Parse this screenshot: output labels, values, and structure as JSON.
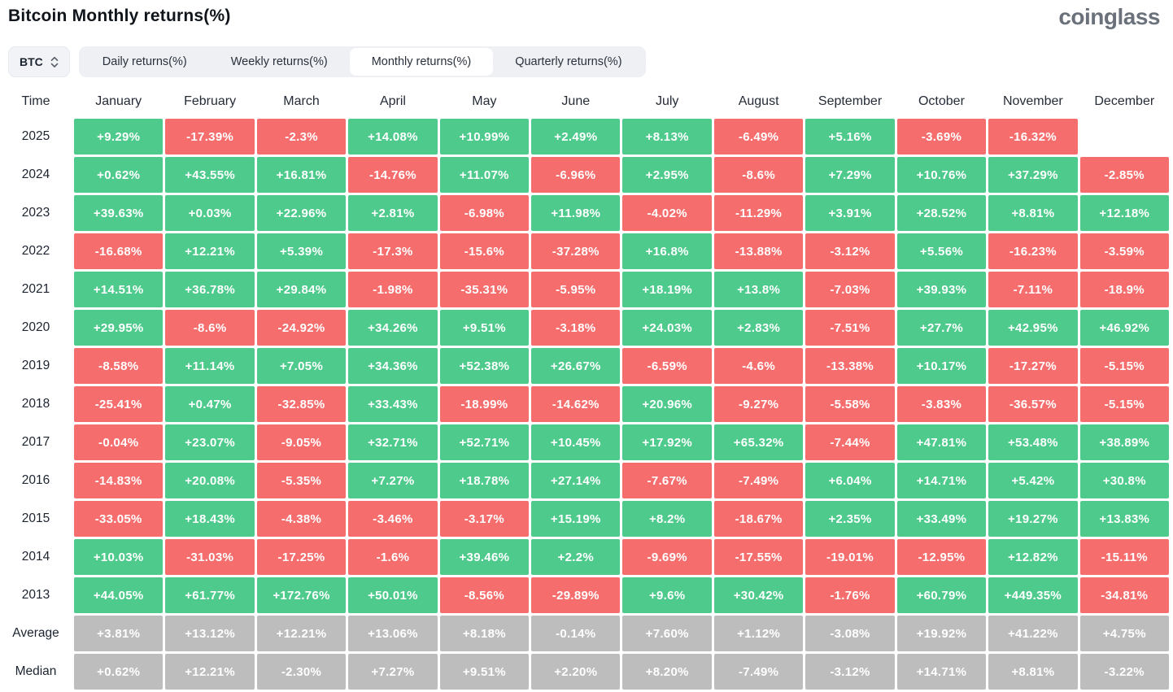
{
  "header": {
    "title": "Bitcoin Monthly returns(%)",
    "logo_text": "coinglass"
  },
  "controls": {
    "symbol_selector": {
      "value": "BTC",
      "icon": "chevron-up-down-icon"
    },
    "tabs": [
      {
        "id": "daily",
        "label": "Daily returns(%)",
        "active": false
      },
      {
        "id": "weekly",
        "label": "Weekly returns(%)",
        "active": false
      },
      {
        "id": "monthly",
        "label": "Monthly returns(%)",
        "active": true
      },
      {
        "id": "quarterly",
        "label": "Quarterly returns(%)",
        "active": false
      }
    ]
  },
  "colors": {
    "positive_cell": "#4ecb8c",
    "negative_cell": "#f66d6d",
    "summary_cell": "#bdbdbd",
    "cell_text": "#ffffff",
    "tab_bar_bg": "#eef0f4",
    "active_tab_bg": "#ffffff",
    "logo_gray": "#6a717b"
  },
  "chart_data": {
    "type": "heatmap",
    "title": "Bitcoin Monthly returns(%)",
    "row_header": "Time",
    "legend_position": "none",
    "grid": false,
    "color_rule": "positive=green, negative=red, summary rows=gray, missing=blank",
    "columns": [
      "January",
      "February",
      "March",
      "April",
      "May",
      "June",
      "July",
      "August",
      "September",
      "October",
      "November",
      "December"
    ],
    "rows": [
      {
        "label": "2025",
        "kind": "year",
        "values": [
          "+9.29%",
          "-17.39%",
          "-2.3%",
          "+14.08%",
          "+10.99%",
          "+2.49%",
          "+8.13%",
          "-6.49%",
          "+5.16%",
          "-3.69%",
          "-16.32%",
          ""
        ]
      },
      {
        "label": "2024",
        "kind": "year",
        "values": [
          "+0.62%",
          "+43.55%",
          "+16.81%",
          "-14.76%",
          "+11.07%",
          "-6.96%",
          "+2.95%",
          "-8.6%",
          "+7.29%",
          "+10.76%",
          "+37.29%",
          "-2.85%"
        ]
      },
      {
        "label": "2023",
        "kind": "year",
        "values": [
          "+39.63%",
          "+0.03%",
          "+22.96%",
          "+2.81%",
          "-6.98%",
          "+11.98%",
          "-4.02%",
          "-11.29%",
          "+3.91%",
          "+28.52%",
          "+8.81%",
          "+12.18%"
        ]
      },
      {
        "label": "2022",
        "kind": "year",
        "values": [
          "-16.68%",
          "+12.21%",
          "+5.39%",
          "-17.3%",
          "-15.6%",
          "-37.28%",
          "+16.8%",
          "-13.88%",
          "-3.12%",
          "+5.56%",
          "-16.23%",
          "-3.59%"
        ]
      },
      {
        "label": "2021",
        "kind": "year",
        "values": [
          "+14.51%",
          "+36.78%",
          "+29.84%",
          "-1.98%",
          "-35.31%",
          "-5.95%",
          "+18.19%",
          "+13.8%",
          "-7.03%",
          "+39.93%",
          "-7.11%",
          "-18.9%"
        ]
      },
      {
        "label": "2020",
        "kind": "year",
        "values": [
          "+29.95%",
          "-8.6%",
          "-24.92%",
          "+34.26%",
          "+9.51%",
          "-3.18%",
          "+24.03%",
          "+2.83%",
          "-7.51%",
          "+27.7%",
          "+42.95%",
          "+46.92%"
        ]
      },
      {
        "label": "2019",
        "kind": "year",
        "values": [
          "-8.58%",
          "+11.14%",
          "+7.05%",
          "+34.36%",
          "+52.38%",
          "+26.67%",
          "-6.59%",
          "-4.6%",
          "-13.38%",
          "+10.17%",
          "-17.27%",
          "-5.15%"
        ]
      },
      {
        "label": "2018",
        "kind": "year",
        "values": [
          "-25.41%",
          "+0.47%",
          "-32.85%",
          "+33.43%",
          "-18.99%",
          "-14.62%",
          "+20.96%",
          "-9.27%",
          "-5.58%",
          "-3.83%",
          "-36.57%",
          "-5.15%"
        ]
      },
      {
        "label": "2017",
        "kind": "year",
        "values": [
          "-0.04%",
          "+23.07%",
          "-9.05%",
          "+32.71%",
          "+52.71%",
          "+10.45%",
          "+17.92%",
          "+65.32%",
          "-7.44%",
          "+47.81%",
          "+53.48%",
          "+38.89%"
        ]
      },
      {
        "label": "2016",
        "kind": "year",
        "values": [
          "-14.83%",
          "+20.08%",
          "-5.35%",
          "+7.27%",
          "+18.78%",
          "+27.14%",
          "-7.67%",
          "-7.49%",
          "+6.04%",
          "+14.71%",
          "+5.42%",
          "+30.8%"
        ]
      },
      {
        "label": "2015",
        "kind": "year",
        "values": [
          "-33.05%",
          "+18.43%",
          "-4.38%",
          "-3.46%",
          "-3.17%",
          "+15.19%",
          "+8.2%",
          "-18.67%",
          "+2.35%",
          "+33.49%",
          "+19.27%",
          "+13.83%"
        ]
      },
      {
        "label": "2014",
        "kind": "year",
        "values": [
          "+10.03%",
          "-31.03%",
          "-17.25%",
          "-1.6%",
          "+39.46%",
          "+2.2%",
          "-9.69%",
          "-17.55%",
          "-19.01%",
          "-12.95%",
          "+12.82%",
          "-15.11%"
        ]
      },
      {
        "label": "2013",
        "kind": "year",
        "values": [
          "+44.05%",
          "+61.77%",
          "+172.76%",
          "+50.01%",
          "-8.56%",
          "-29.89%",
          "+9.6%",
          "+30.42%",
          "-1.76%",
          "+60.79%",
          "+449.35%",
          "-34.81%"
        ]
      },
      {
        "label": "Average",
        "kind": "summary",
        "values": [
          "+3.81%",
          "+13.12%",
          "+12.21%",
          "+13.06%",
          "+8.18%",
          "-0.14%",
          "+7.60%",
          "+1.12%",
          "-3.08%",
          "+19.92%",
          "+41.22%",
          "+4.75%"
        ]
      },
      {
        "label": "Median",
        "kind": "summary",
        "values": [
          "+0.62%",
          "+12.21%",
          "-2.30%",
          "+7.27%",
          "+9.51%",
          "+2.20%",
          "+8.20%",
          "-7.49%",
          "-3.12%",
          "+14.71%",
          "+8.81%",
          "-3.22%"
        ]
      }
    ]
  }
}
